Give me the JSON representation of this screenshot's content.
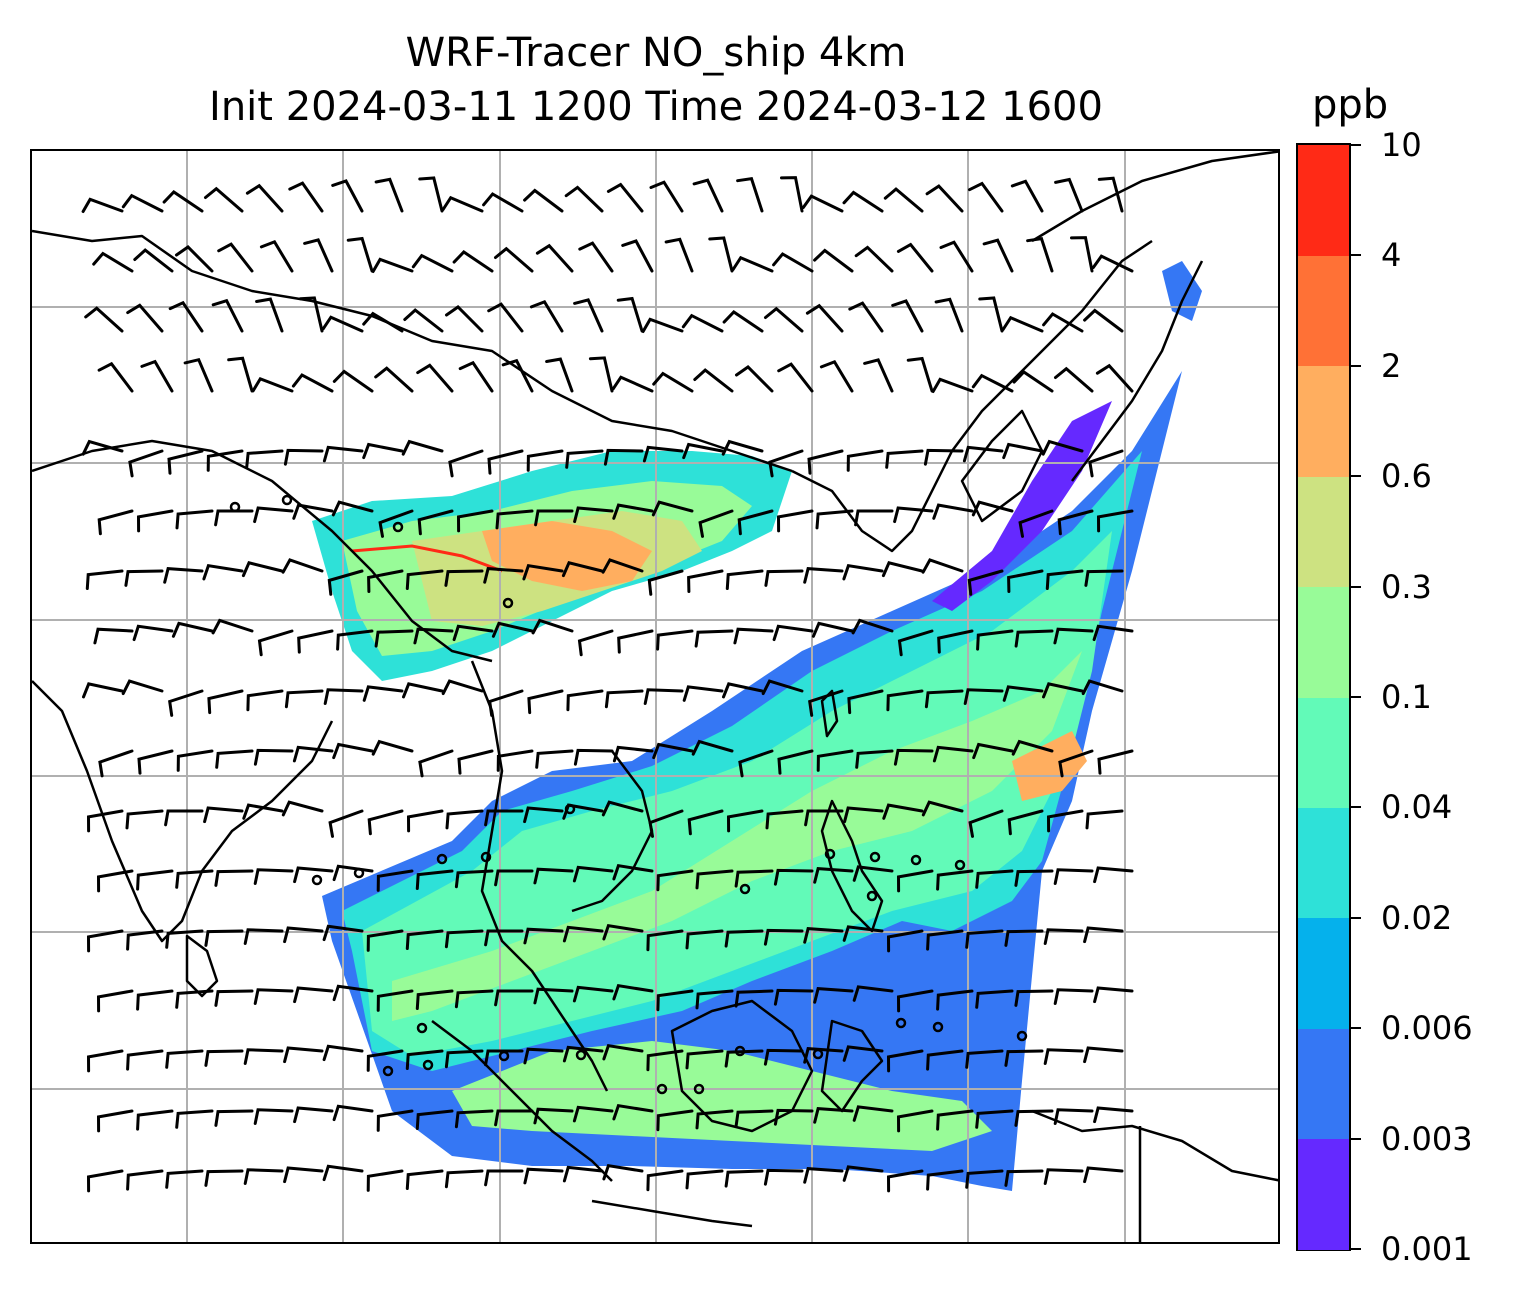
{
  "title": {
    "line1": "WRF-Tracer NO_ship 4km",
    "line2": "Init 2024-03-11 1200 Time 2024-03-12 1600"
  },
  "colorbar": {
    "unit": "ppb",
    "levels": [
      "0.001",
      "0.003",
      "0.006",
      "0.02",
      "0.04",
      "0.1",
      "0.3",
      "0.6",
      "2",
      "4",
      "10"
    ],
    "colors": [
      "#6529ff",
      "#3577f4",
      "#05b1ec",
      "#2ee1d8",
      "#62fab8",
      "#98fb98",
      "#cde281",
      "#ffae5f",
      "#ff7136",
      "#ff2a16"
    ]
  },
  "map": {
    "gridlines": true,
    "coastline_color": "#000000",
    "grid_color": "#b0b0b0",
    "wind_barbs": true,
    "calm_circles": true
  }
}
